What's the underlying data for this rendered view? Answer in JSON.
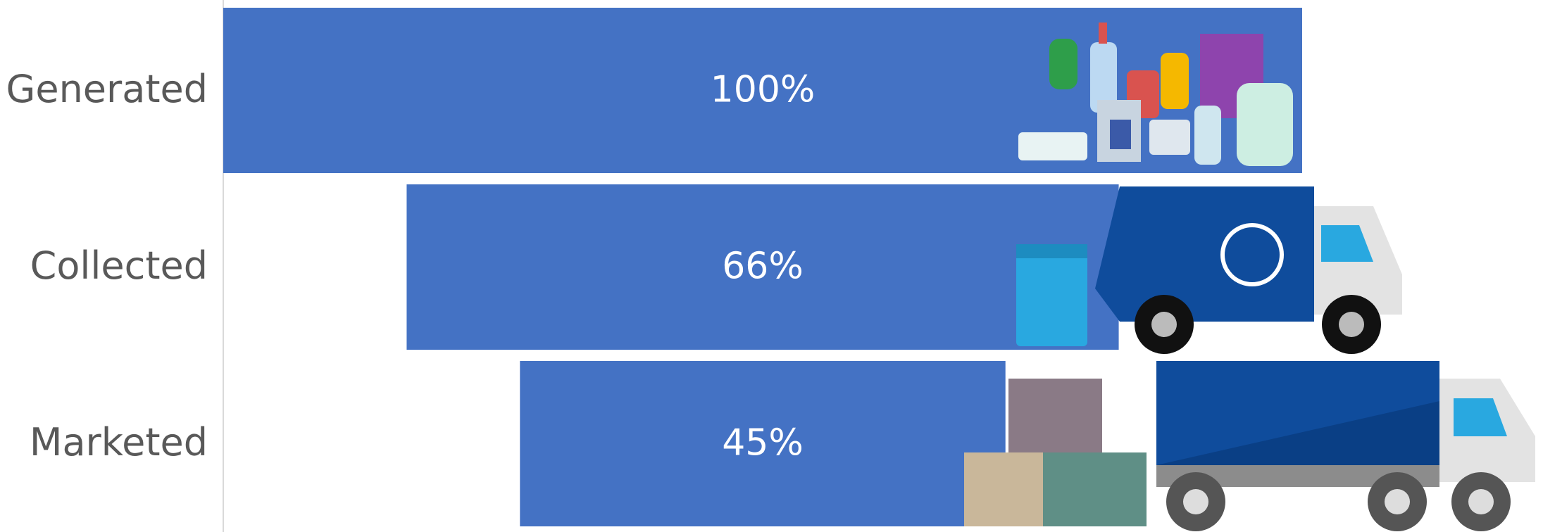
{
  "chart_data": {
    "type": "funnel",
    "categories": [
      "Generated",
      "Collected",
      "Marketed"
    ],
    "values": [
      100,
      66,
      45
    ],
    "value_labels": [
      "100%",
      "66%",
      "45%"
    ],
    "color": "#4472c4"
  }
}
